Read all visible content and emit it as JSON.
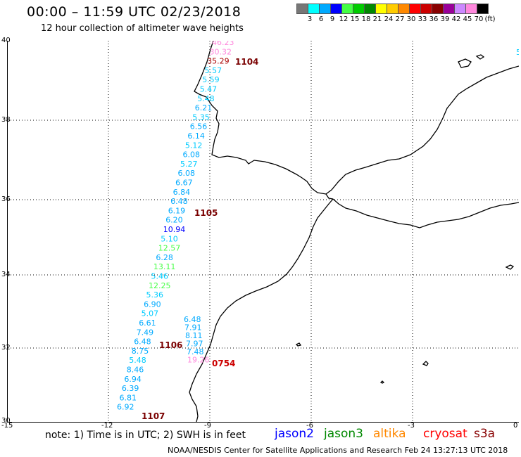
{
  "header": {
    "title": "00:00 – 11:59 UTC 02/23/2018",
    "subtitle": "12 hour collection of altimeter wave heights"
  },
  "color_scale": {
    "colors": [
      "#777777",
      "#00ffff",
      "#00aaff",
      "#0000ff",
      "#44ff44",
      "#00cc00",
      "#008800",
      "#ffff00",
      "#ffcc00",
      "#ff8800",
      "#ff0000",
      "#cc0000",
      "#880000",
      "#990099",
      "#cc88ff",
      "#ff88dd",
      "#000000"
    ],
    "labels": [
      "3",
      "6",
      "9",
      "12",
      "15",
      "18",
      "21",
      "24",
      "27",
      "30",
      "33",
      "36",
      "39",
      "42",
      "45",
      "70",
      "(ft)"
    ]
  },
  "axes": {
    "lat_labels": [
      "40",
      "38",
      "36",
      "34",
      "32",
      "30"
    ],
    "lon_labels": [
      "-15",
      "-12",
      "-9",
      "-6",
      "-3",
      "0"
    ]
  },
  "track": [
    {
      "value": "46.23",
      "color": "#ff88dd"
    },
    {
      "value": "30.32",
      "color": "#ff88dd"
    },
    {
      "value": "35.29",
      "color": "#aa0000"
    },
    {
      "value": "5.57",
      "color": "#00ccff"
    },
    {
      "value": "5.59",
      "color": "#00ccff"
    },
    {
      "value": "5.47",
      "color": "#00ccff"
    },
    {
      "value": "5.48",
      "color": "#00ccff"
    },
    {
      "value": "6.21",
      "color": "#00aaff"
    },
    {
      "value": "5.35",
      "color": "#00ccff"
    },
    {
      "value": "6.56",
      "color": "#00aaff"
    },
    {
      "value": "6.14",
      "color": "#00aaff"
    },
    {
      "value": "5.12",
      "color": "#00ccff"
    },
    {
      "value": "6.08",
      "color": "#00aaff"
    },
    {
      "value": "5.27",
      "color": "#00ccff"
    },
    {
      "value": "6.08",
      "color": "#00aaff"
    },
    {
      "value": "6.67",
      "color": "#00aaff"
    },
    {
      "value": "6.84",
      "color": "#00aaff"
    },
    {
      "value": "6.48",
      "color": "#00aaff"
    },
    {
      "value": "6.19",
      "color": "#00aaff"
    },
    {
      "value": "6.20",
      "color": "#00aaff"
    },
    {
      "value": "10.94",
      "color": "#0000ff"
    },
    {
      "value": "5.10",
      "color": "#00ccff"
    },
    {
      "value": "12.57",
      "color": "#44ff44"
    },
    {
      "value": "6.28",
      "color": "#00aaff"
    },
    {
      "value": "13.11",
      "color": "#44ff44"
    },
    {
      "value": "5.46",
      "color": "#00ccff"
    },
    {
      "value": "12.25",
      "color": "#44ff44"
    },
    {
      "value": "5.36",
      "color": "#00ccff"
    },
    {
      "value": "6.90",
      "color": "#00aaff"
    },
    {
      "value": "5.07",
      "color": "#00ccff"
    },
    {
      "value": "6.61",
      "color": "#00aaff"
    },
    {
      "value": "7.49",
      "color": "#00aaff"
    },
    {
      "value": "6.48",
      "color": "#00aaff"
    },
    {
      "value": "8.75",
      "color": "#00aaff"
    },
    {
      "value": "5.48",
      "color": "#00ccff"
    },
    {
      "value": "8.46",
      "color": "#00aaff"
    },
    {
      "value": "6.94",
      "color": "#00aaff"
    },
    {
      "value": "6.39",
      "color": "#00aaff"
    },
    {
      "value": "6.81",
      "color": "#00aaff"
    },
    {
      "value": "6.92",
      "color": "#00aaff"
    }
  ],
  "track2": [
    {
      "value": "6.48",
      "color": "#00aaff"
    },
    {
      "value": "7.91",
      "color": "#00aaff"
    },
    {
      "value": "8.11",
      "color": "#00aaff"
    },
    {
      "value": "7.97",
      "color": "#00aaff"
    },
    {
      "value": "7.48",
      "color": "#00aaff"
    },
    {
      "value": "19.26",
      "color": "#ff88dd"
    }
  ],
  "passes": [
    "1104",
    "1105",
    "1106",
    "0754",
    "1107"
  ],
  "edge_label": "5",
  "footer": {
    "note": "note:  1) Time is in UTC;  2) SWH is in feet",
    "credit": "NOAA/NESDIS Center for Satellite Applications and Research      Feb 24 13:27:13 UTC 2018"
  },
  "legend": [
    {
      "name": "jason2",
      "color": "#0000ff"
    },
    {
      "name": "jason3",
      "color": "#008800"
    },
    {
      "name": "altika",
      "color": "#ff8800"
    },
    {
      "name": "cryosat",
      "color": "#ff0000"
    },
    {
      "name": "s3a",
      "color": "#880000"
    }
  ]
}
